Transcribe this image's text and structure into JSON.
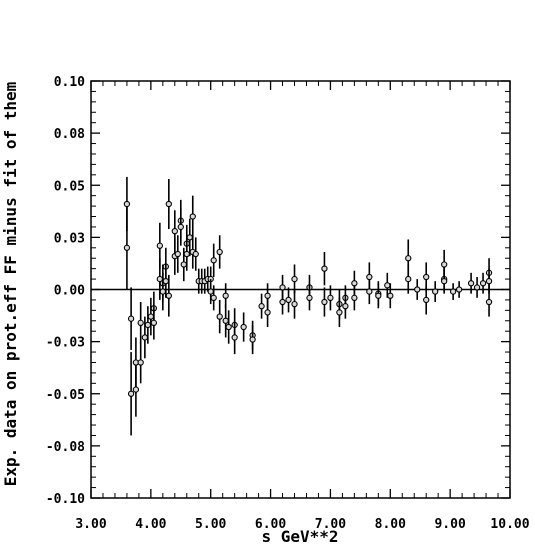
{
  "chart_data": {
    "type": "scatter",
    "title": "",
    "xlabel": "s GeV**2",
    "ylabel": "Exp. data on prot.eff FF minus fit of them",
    "xlim": [
      3.0,
      10.0
    ],
    "ylim": [
      -0.1,
      0.1
    ],
    "x_ticks": [
      3.0,
      4.0,
      5.0,
      6.0,
      7.0,
      8.0,
      9.0,
      10.0
    ],
    "x_tick_labels": [
      "3.00",
      "4.00",
      "5.00",
      "6.00",
      "7.00",
      "8.00",
      "9.00",
      "10.00"
    ],
    "y_ticks": [
      -0.1,
      -0.075,
      -0.05,
      -0.025,
      0.0,
      0.025,
      0.05,
      0.075,
      0.1
    ],
    "y_tick_labels": [
      "-0.10",
      "-0.08",
      "-0.05",
      "-0.03",
      "0.00",
      "0.03",
      "0.05",
      "0.08",
      "0.10"
    ],
    "reference_line": 0.0,
    "grid": false,
    "points": [
      {
        "x": 3.6,
        "y": 0.041,
        "err": 0.013
      },
      {
        "x": 3.6,
        "y": 0.02,
        "err": 0.02
      },
      {
        "x": 3.67,
        "y": -0.05,
        "err": 0.02
      },
      {
        "x": 3.67,
        "y": -0.014,
        "err": 0.015
      },
      {
        "x": 3.75,
        "y": -0.048,
        "err": 0.013
      },
      {
        "x": 3.75,
        "y": -0.035,
        "err": 0.012
      },
      {
        "x": 3.83,
        "y": -0.035,
        "err": 0.01
      },
      {
        "x": 3.83,
        "y": -0.016,
        "err": 0.01
      },
      {
        "x": 3.9,
        "y": -0.023,
        "err": 0.01
      },
      {
        "x": 3.95,
        "y": -0.017,
        "err": 0.009
      },
      {
        "x": 4.0,
        "y": -0.013,
        "err": 0.009
      },
      {
        "x": 4.05,
        "y": -0.009,
        "err": 0.008
      },
      {
        "x": 4.05,
        "y": -0.016,
        "err": 0.008
      },
      {
        "x": 4.15,
        "y": 0.021,
        "err": 0.011
      },
      {
        "x": 4.15,
        "y": 0.005,
        "err": 0.01
      },
      {
        "x": 4.2,
        "y": 0.003,
        "err": 0.009
      },
      {
        "x": 4.2,
        "y": -0.001,
        "err": 0.009
      },
      {
        "x": 4.25,
        "y": 0.011,
        "err": 0.009
      },
      {
        "x": 4.25,
        "y": 0.004,
        "err": 0.008
      },
      {
        "x": 4.3,
        "y": 0.041,
        "err": 0.012
      },
      {
        "x": 4.3,
        "y": -0.003,
        "err": 0.01
      },
      {
        "x": 4.4,
        "y": 0.028,
        "err": 0.01
      },
      {
        "x": 4.4,
        "y": 0.016,
        "err": 0.009
      },
      {
        "x": 4.45,
        "y": 0.017,
        "err": 0.009
      },
      {
        "x": 4.5,
        "y": 0.033,
        "err": 0.01
      },
      {
        "x": 4.5,
        "y": 0.03,
        "err": 0.009
      },
      {
        "x": 4.55,
        "y": 0.012,
        "err": 0.008
      },
      {
        "x": 4.6,
        "y": 0.022,
        "err": 0.009
      },
      {
        "x": 4.6,
        "y": 0.017,
        "err": 0.008
      },
      {
        "x": 4.65,
        "y": 0.025,
        "err": 0.009
      },
      {
        "x": 4.7,
        "y": 0.035,
        "err": 0.01
      },
      {
        "x": 4.7,
        "y": 0.018,
        "err": 0.008
      },
      {
        "x": 4.75,
        "y": 0.017,
        "err": 0.008
      },
      {
        "x": 4.8,
        "y": 0.004,
        "err": 0.006
      },
      {
        "x": 4.85,
        "y": 0.004,
        "err": 0.006
      },
      {
        "x": 4.9,
        "y": 0.004,
        "err": 0.006
      },
      {
        "x": 4.95,
        "y": 0.005,
        "err": 0.006
      },
      {
        "x": 5.0,
        "y": 0.005,
        "err": 0.006
      },
      {
        "x": 5.0,
        "y": -0.001,
        "err": 0.006
      },
      {
        "x": 5.05,
        "y": 0.014,
        "err": 0.008
      },
      {
        "x": 5.05,
        "y": -0.004,
        "err": 0.006
      },
      {
        "x": 5.15,
        "y": 0.018,
        "err": 0.008
      },
      {
        "x": 5.15,
        "y": -0.013,
        "err": 0.008
      },
      {
        "x": 5.25,
        "y": -0.003,
        "err": 0.006
      },
      {
        "x": 5.25,
        "y": -0.015,
        "err": 0.008
      },
      {
        "x": 5.3,
        "y": -0.018,
        "err": 0.008
      },
      {
        "x": 5.4,
        "y": -0.017,
        "err": 0.008
      },
      {
        "x": 5.4,
        "y": -0.023,
        "err": 0.008
      },
      {
        "x": 5.55,
        "y": -0.018,
        "err": 0.007
      },
      {
        "x": 5.7,
        "y": -0.022,
        "err": 0.007
      },
      {
        "x": 5.7,
        "y": -0.024,
        "err": 0.007
      },
      {
        "x": 5.85,
        "y": -0.008,
        "err": 0.006
      },
      {
        "x": 5.95,
        "y": -0.011,
        "err": 0.007
      },
      {
        "x": 5.95,
        "y": -0.003,
        "err": 0.006
      },
      {
        "x": 6.2,
        "y": 0.001,
        "err": 0.006
      },
      {
        "x": 6.2,
        "y": -0.006,
        "err": 0.006
      },
      {
        "x": 6.3,
        "y": -0.005,
        "err": 0.006
      },
      {
        "x": 6.4,
        "y": 0.005,
        "err": 0.007
      },
      {
        "x": 6.4,
        "y": -0.007,
        "err": 0.007
      },
      {
        "x": 6.65,
        "y": 0.001,
        "err": 0.006
      },
      {
        "x": 6.65,
        "y": -0.004,
        "err": 0.006
      },
      {
        "x": 6.9,
        "y": 0.01,
        "err": 0.008
      },
      {
        "x": 6.9,
        "y": -0.006,
        "err": 0.007
      },
      {
        "x": 7.0,
        "y": -0.004,
        "err": 0.006
      },
      {
        "x": 7.15,
        "y": -0.007,
        "err": 0.007
      },
      {
        "x": 7.15,
        "y": -0.011,
        "err": 0.007
      },
      {
        "x": 7.25,
        "y": -0.004,
        "err": 0.006
      },
      {
        "x": 7.25,
        "y": -0.008,
        "err": 0.006
      },
      {
        "x": 7.4,
        "y": 0.003,
        "err": 0.006
      },
      {
        "x": 7.4,
        "y": -0.004,
        "err": 0.006
      },
      {
        "x": 7.65,
        "y": 0.006,
        "err": 0.007
      },
      {
        "x": 7.65,
        "y": -0.001,
        "err": 0.006
      },
      {
        "x": 7.8,
        "y": -0.002,
        "err": 0.006
      },
      {
        "x": 7.8,
        "y": -0.003,
        "err": 0.006
      },
      {
        "x": 7.95,
        "y": 0.002,
        "err": 0.006
      },
      {
        "x": 8.0,
        "y": -0.003,
        "err": 0.006
      },
      {
        "x": 8.3,
        "y": 0.015,
        "err": 0.009
      },
      {
        "x": 8.3,
        "y": 0.005,
        "err": 0.007
      },
      {
        "x": 8.45,
        "y": 0.0,
        "err": 0.005
      },
      {
        "x": 8.6,
        "y": 0.006,
        "err": 0.007
      },
      {
        "x": 8.6,
        "y": -0.005,
        "err": 0.007
      },
      {
        "x": 8.75,
        "y": -0.001,
        "err": 0.005
      },
      {
        "x": 8.9,
        "y": 0.012,
        "err": 0.007
      },
      {
        "x": 8.9,
        "y": 0.005,
        "err": 0.006
      },
      {
        "x": 8.9,
        "y": 0.004,
        "err": 0.006
      },
      {
        "x": 9.05,
        "y": -0.001,
        "err": 0.004
      },
      {
        "x": 9.15,
        "y": 0.0,
        "err": 0.004
      },
      {
        "x": 9.35,
        "y": 0.003,
        "err": 0.005
      },
      {
        "x": 9.45,
        "y": 0.001,
        "err": 0.005
      },
      {
        "x": 9.55,
        "y": 0.003,
        "err": 0.005
      },
      {
        "x": 9.65,
        "y": 0.008,
        "err": 0.007
      },
      {
        "x": 9.65,
        "y": 0.004,
        "err": 0.006
      },
      {
        "x": 9.65,
        "y": -0.006,
        "err": 0.007
      }
    ]
  }
}
